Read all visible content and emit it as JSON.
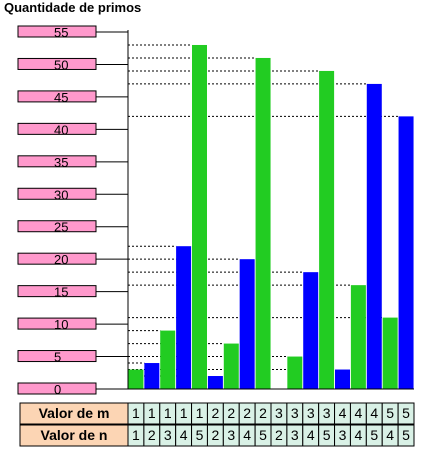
{
  "chart_data": {
    "type": "bar",
    "title": "Quantidade de primos",
    "yticks": [
      0,
      5,
      10,
      15,
      20,
      25,
      30,
      35,
      40,
      45,
      50,
      55
    ],
    "ylim": [
      0,
      55
    ],
    "colors": {
      "green": "#22cc22",
      "blue": "#0000ff",
      "tick_box": "#ff99cc",
      "table_header": "#fcd5b4",
      "table_cell": "#d9f1e6"
    },
    "row_labels": {
      "m": "Valor de m",
      "n": "Valor de n"
    },
    "m": [
      "1",
      "1",
      "1",
      "1",
      "1",
      "2",
      "2",
      "2",
      "2",
      "3",
      "3",
      "3",
      "3",
      "4",
      "4",
      "4",
      "5",
      "5"
    ],
    "n": [
      "1",
      "2",
      "3",
      "4",
      "5",
      "2",
      "3",
      "4",
      "5",
      "2",
      "3",
      "4",
      "5",
      "3",
      "4",
      "5",
      "4",
      "5"
    ],
    "bars": [
      {
        "value": 3,
        "color": "green"
      },
      {
        "value": 4,
        "color": "blue"
      },
      {
        "value": 9,
        "color": "green"
      },
      {
        "value": 22,
        "color": "blue"
      },
      {
        "value": 53,
        "color": "green"
      },
      {
        "value": 2,
        "color": "blue"
      },
      {
        "value": 7,
        "color": "green"
      },
      {
        "value": 20,
        "color": "blue"
      },
      {
        "value": 51,
        "color": "green"
      },
      {
        "value": 0,
        "color": "blue"
      },
      {
        "value": 5,
        "color": "green"
      },
      {
        "value": 18,
        "color": "blue"
      },
      {
        "value": 49,
        "color": "green"
      },
      {
        "value": 3,
        "color": "blue"
      },
      {
        "value": 16,
        "color": "green"
      },
      {
        "value": 47,
        "color": "blue"
      },
      {
        "value": 11,
        "color": "green"
      },
      {
        "value": 42,
        "color": "blue"
      }
    ]
  }
}
